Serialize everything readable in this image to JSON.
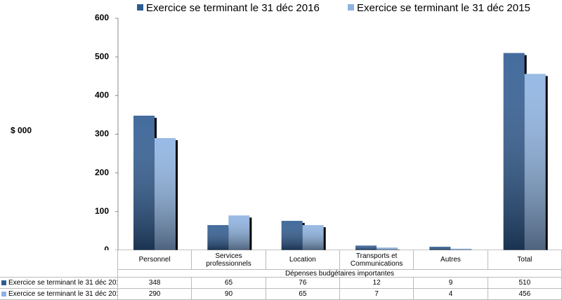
{
  "chart_data": {
    "type": "bar",
    "y_label": "$ 000",
    "x_label": "Dépenses budgétaires importantes",
    "categories": [
      "Personnel",
      "Services professionnels",
      "Location",
      "Transports et Communications",
      "Autres",
      "Total"
    ],
    "series": [
      {
        "name": "Exercice se terminant le 31 déc 2016",
        "color": "#2e5b92",
        "values": [
          348,
          65,
          76,
          12,
          9,
          510
        ]
      },
      {
        "name": "Exercice se terminant le 31 déc 2015",
        "color": "#8db3e2",
        "values": [
          290,
          90,
          65,
          7,
          4,
          456
        ]
      }
    ],
    "ylim": [
      0,
      600
    ],
    "yticks": [
      0,
      100,
      200,
      300,
      400,
      500,
      600
    ]
  }
}
